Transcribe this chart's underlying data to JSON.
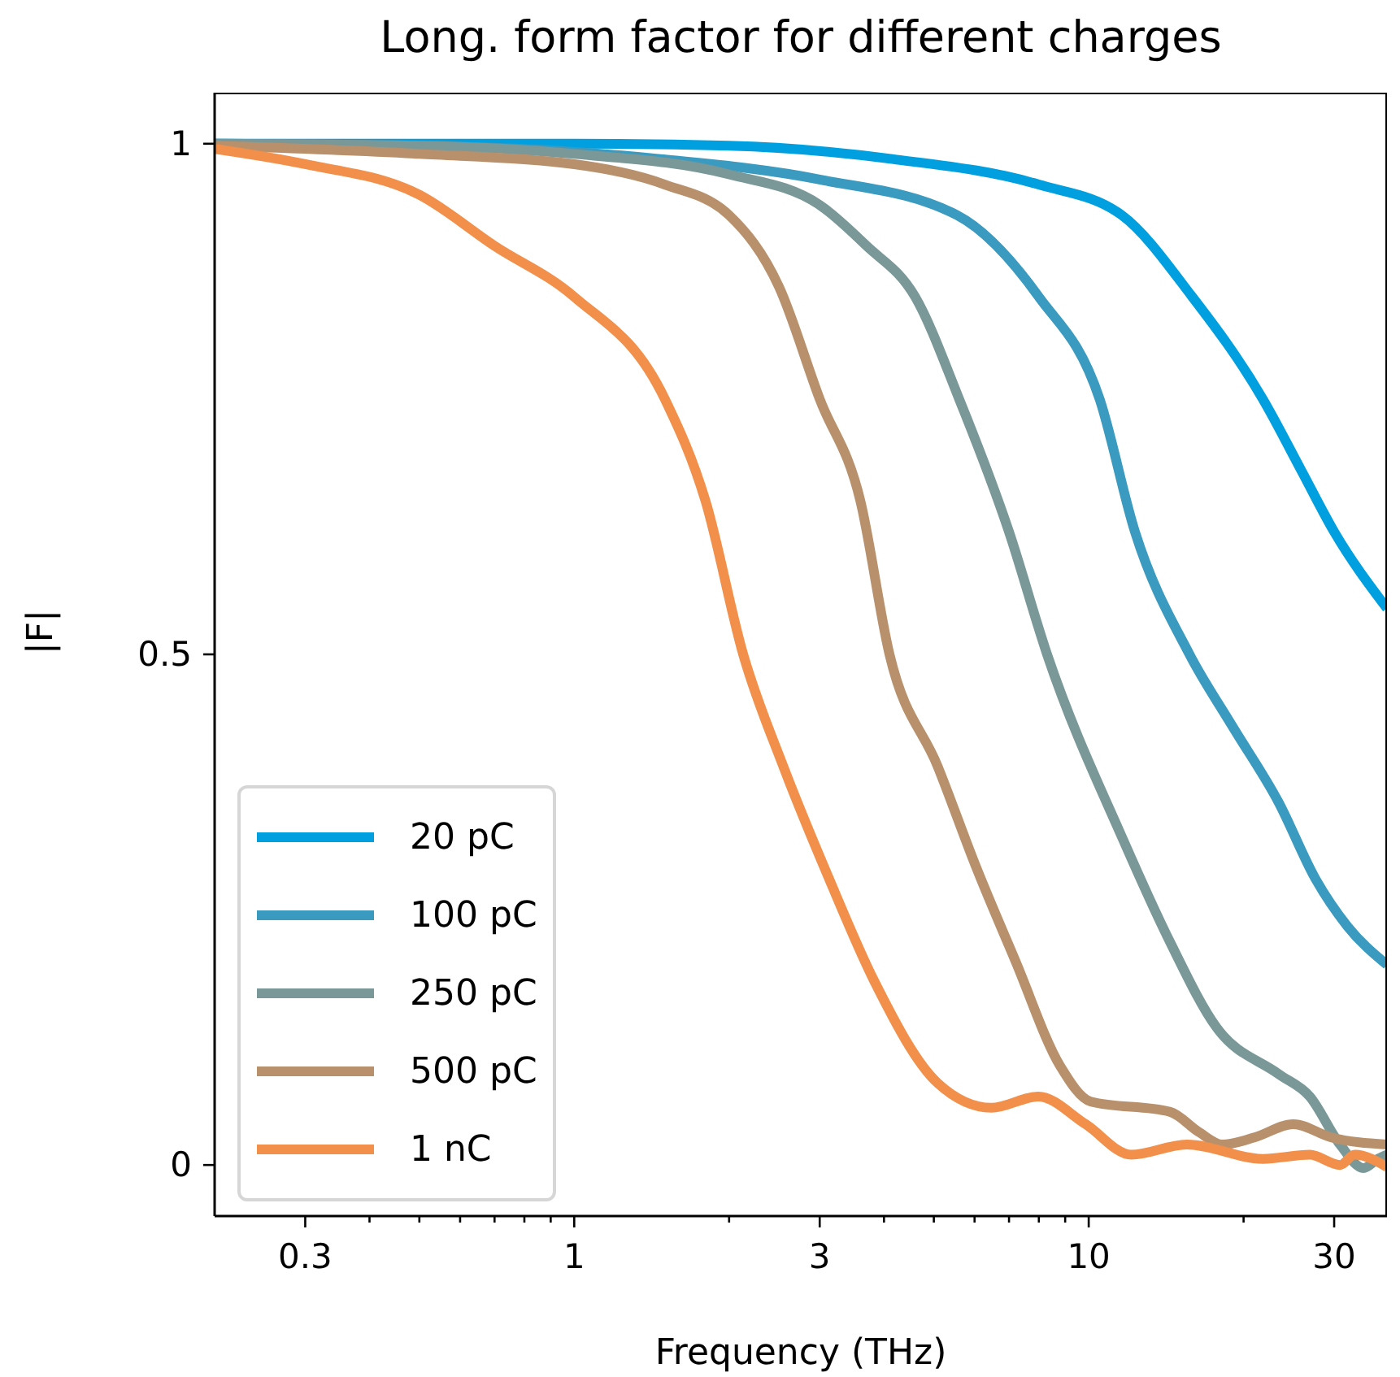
{
  "chart_data": {
    "type": "line",
    "title": "Long. form factor for different charges",
    "xlabel": "Frequency (THz)",
    "ylabel": "|F|",
    "log": "x",
    "xlim": [
      0.2,
      38
    ],
    "ylim": [
      -0.05,
      1.05
    ],
    "xticks": [
      0.3,
      {
        "value": 0.4,
        "label": null
      },
      {
        "value": 0.5,
        "label": null
      },
      {
        "value": 0.6,
        "label": null
      },
      {
        "value": 0.7,
        "label": null
      },
      {
        "value": 0.8,
        "label": null
      },
      {
        "value": 0.9,
        "label": null
      },
      1,
      {
        "value": 2,
        "label": null
      },
      3,
      {
        "value": 4,
        "label": null
      },
      {
        "value": 5,
        "label": null
      },
      {
        "value": 6,
        "label": null
      },
      {
        "value": 7,
        "label": null
      },
      {
        "value": 8,
        "label": null
      },
      {
        "value": 9,
        "label": null
      },
      10,
      {
        "value": 20,
        "label": null
      },
      30
    ],
    "yticks": [
      0,
      0.5,
      1
    ],
    "legend": "bottom left",
    "series": [
      {
        "name": "20 pC",
        "color": "#00a0e0",
        "x": [
          0.2,
          1,
          2,
          4.15,
          8,
          11.6,
          15.9,
          21.8,
          25.9,
          30,
          38
        ],
        "values": [
          1,
          1,
          0.998,
          0.985,
          0.96,
          0.93,
          0.85,
          0.75,
          0.68,
          0.62,
          0.545
        ]
      },
      {
        "name": "100 pC",
        "color": "#3a9ac0",
        "x": [
          0.2,
          0.5,
          1,
          1.47,
          3,
          5.55,
          8,
          10.5,
          12.3,
          15.7,
          19,
          23.4,
          27.6,
          31.8,
          38
        ],
        "values": [
          1,
          0.998,
          0.992,
          0.985,
          0.965,
          0.93,
          0.85,
          0.75,
          0.62,
          0.5,
          0.43,
          0.355,
          0.28,
          0.234,
          0.196
        ]
      },
      {
        "name": "250 pC",
        "color": "#7a9898",
        "x": [
          0.2,
          0.5,
          1,
          2,
          3,
          3.7,
          4.6,
          5.6,
          7,
          8.3,
          11.7,
          14.4,
          17.7,
          23.4,
          26.9,
          30.8,
          34.2,
          36.5,
          38
        ],
        "values": [
          1,
          0.998,
          0.99,
          0.97,
          0.94,
          0.9,
          0.85,
          0.75,
          0.62,
          0.5,
          0.317,
          0.218,
          0.135,
          0.089,
          0.067,
          0.02,
          -0.003,
          0.006,
          0.01
        ]
      },
      {
        "name": "500 pC",
        "color": "#b8916c",
        "x": [
          0.2,
          0.5,
          1,
          1.5,
          2,
          2.5,
          3,
          3.6,
          4.1,
          5.09,
          6.06,
          7.2,
          8.8,
          10.1,
          14.4,
          16.4,
          18.2,
          21,
          25,
          29.6,
          38
        ],
        "values": [
          0.998,
          0.99,
          0.98,
          0.96,
          0.93,
          0.86,
          0.75,
          0.65,
          0.5,
          0.39,
          0.29,
          0.2,
          0.097,
          0.062,
          0.052,
          0.032,
          0.02,
          0.027,
          0.04,
          0.027,
          0.02
        ]
      },
      {
        "name": "1 nC",
        "color": "#f28f4a",
        "x": [
          0.2,
          0.3,
          0.5,
          0.7,
          1,
          1.5,
          1.8,
          2.13,
          2.55,
          3.13,
          3.83,
          5.09,
          6.47,
          7.98,
          9.86,
          12.1,
          15.5,
          21.8,
          26.9,
          30.8,
          32.9,
          38
        ],
        "values": [
          0.995,
          0.98,
          0.95,
          0.9,
          0.85,
          0.75,
          0.65,
          0.5,
          0.39,
          0.28,
          0.18,
          0.08,
          0.056,
          0.067,
          0.04,
          0.01,
          0.02,
          0.006,
          0.01,
          0,
          0.01,
          -0.002
        ]
      }
    ]
  }
}
